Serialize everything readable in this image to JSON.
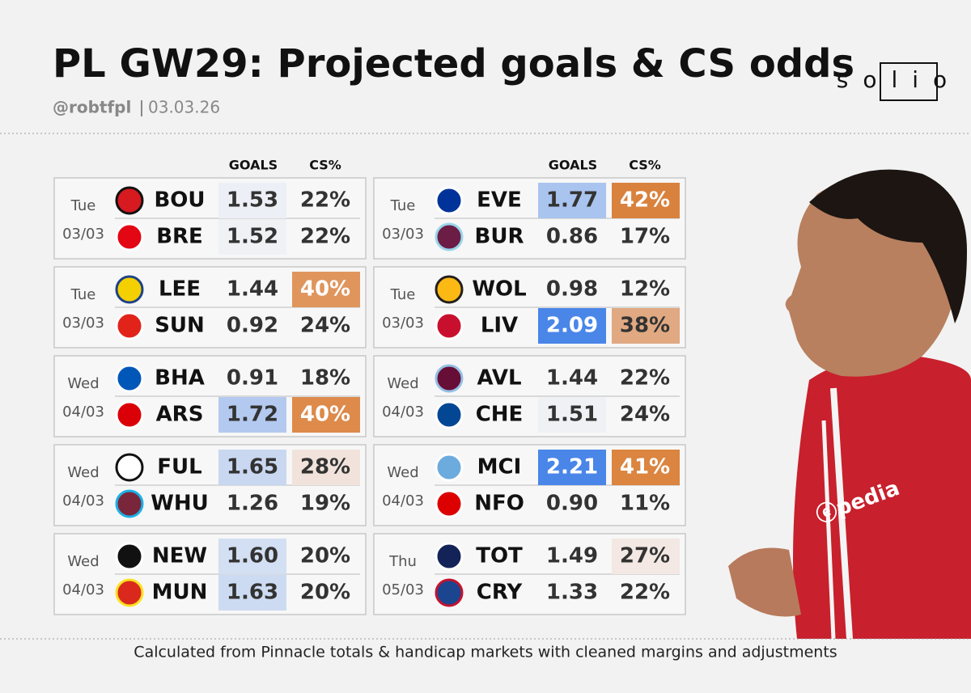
{
  "header": {
    "title": "PL GW29: Projected goals & CS odds",
    "handle": "@robtfpl",
    "date": "03.03.26"
  },
  "logo": "solio",
  "columns": {
    "goals": "GOALS",
    "cs": "CS%"
  },
  "matches": [
    {
      "day": "Tue",
      "date": "03/03",
      "teams": [
        {
          "abbr": "BOU",
          "goals": "1.53",
          "cs": "22%",
          "goals_color": "#eceff5",
          "cs_color": null
        },
        {
          "abbr": "BRE",
          "goals": "1.52",
          "cs": "22%",
          "goals_color": "#eff1f5",
          "cs_color": null
        }
      ]
    },
    {
      "day": "Tue",
      "date": "03/03",
      "teams": [
        {
          "abbr": "LEE",
          "goals": "1.44",
          "cs": "40%",
          "goals_color": null,
          "cs_color": "#e0955c"
        },
        {
          "abbr": "SUN",
          "goals": "0.92",
          "cs": "24%",
          "goals_color": null,
          "cs_color": null
        }
      ]
    },
    {
      "day": "Wed",
      "date": "04/03",
      "teams": [
        {
          "abbr": "BHA",
          "goals": "0.91",
          "cs": "18%",
          "goals_color": null,
          "cs_color": null
        },
        {
          "abbr": "ARS",
          "goals": "1.72",
          "cs": "40%",
          "goals_color": "#b3c9ef",
          "cs_color": "#dd8a4a"
        }
      ]
    },
    {
      "day": "Wed",
      "date": "04/03",
      "teams": [
        {
          "abbr": "FUL",
          "goals": "1.65",
          "cs": "28%",
          "goals_color": "#c9d7f0",
          "cs_color": "#f1e3dc"
        },
        {
          "abbr": "WHU",
          "goals": "1.26",
          "cs": "19%",
          "goals_color": null,
          "cs_color": null
        }
      ]
    },
    {
      "day": "Wed",
      "date": "04/03",
      "teams": [
        {
          "abbr": "NEW",
          "goals": "1.60",
          "cs": "20%",
          "goals_color": "#d3dff2",
          "cs_color": null
        },
        {
          "abbr": "MUN",
          "goals": "1.63",
          "cs": "20%",
          "goals_color": "#cddbf2",
          "cs_color": null
        }
      ]
    },
    {
      "day": "Tue",
      "date": "03/03",
      "teams": [
        {
          "abbr": "EVE",
          "goals": "1.77",
          "cs": "42%",
          "goals_color": "#a9c4ef",
          "cs_color": "#d9823e"
        },
        {
          "abbr": "BUR",
          "goals": "0.86",
          "cs": "17%",
          "goals_color": null,
          "cs_color": null
        }
      ]
    },
    {
      "day": "Tue",
      "date": "03/03",
      "teams": [
        {
          "abbr": "WOL",
          "goals": "0.98",
          "cs": "12%",
          "goals_color": null,
          "cs_color": null
        },
        {
          "abbr": "LIV",
          "goals": "2.09",
          "cs": "38%",
          "goals_color": "#4a86e8",
          "cs_color": "#e0a982"
        }
      ]
    },
    {
      "day": "Wed",
      "date": "04/03",
      "teams": [
        {
          "abbr": "AVL",
          "goals": "1.44",
          "cs": "22%",
          "goals_color": null,
          "cs_color": null
        },
        {
          "abbr": "CHE",
          "goals": "1.51",
          "cs": "24%",
          "goals_color": "#f0f1f5",
          "cs_color": null
        }
      ]
    },
    {
      "day": "Wed",
      "date": "04/03",
      "teams": [
        {
          "abbr": "MCI",
          "goals": "2.21",
          "cs": "41%",
          "goals_color": "#4a86e8",
          "cs_color": "#db8540"
        },
        {
          "abbr": "NFO",
          "goals": "0.90",
          "cs": "11%",
          "goals_color": null,
          "cs_color": null
        }
      ]
    },
    {
      "day": "Thu",
      "date": "05/03",
      "teams": [
        {
          "abbr": "TOT",
          "goals": "1.49",
          "cs": "27%",
          "goals_color": null,
          "cs_color": "#f3e8e3"
        },
        {
          "abbr": "CRY",
          "goals": "1.33",
          "cs": "22%",
          "goals_color": null,
          "cs_color": null
        }
      ]
    }
  ],
  "footer": "Calculated from  Pinnacle totals & handicap markets with cleaned margins and adjustments"
}
